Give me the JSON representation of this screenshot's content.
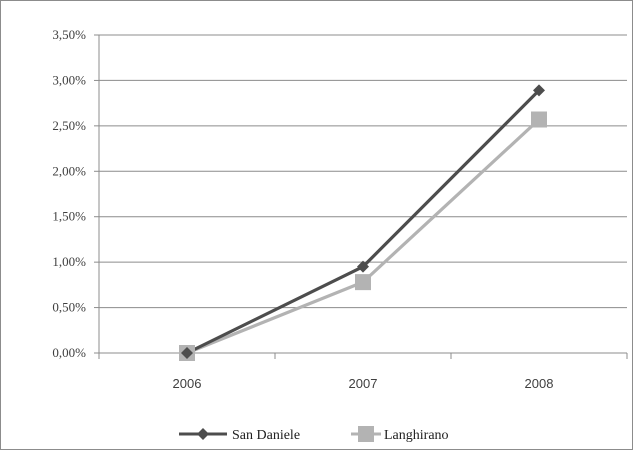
{
  "chart_data": {
    "type": "line",
    "categories": [
      "2006",
      "2007",
      "2008"
    ],
    "series": [
      {
        "name": "San Daniele",
        "values": [
          0.0,
          0.95,
          2.89
        ],
        "color": "#4d4d4d",
        "marker": "diamond"
      },
      {
        "name": "Langhirano",
        "values": [
          0.0,
          0.78,
          2.57
        ],
        "color": "#b3b3b3",
        "marker": "square"
      }
    ],
    "yticks": [
      "0,00%",
      "0,50%",
      "1,00%",
      "1,50%",
      "2,00%",
      "2,50%",
      "3,00%",
      "3,50%"
    ],
    "ylim": [
      0,
      3.5
    ],
    "grid": true,
    "legend_position": "bottom"
  }
}
